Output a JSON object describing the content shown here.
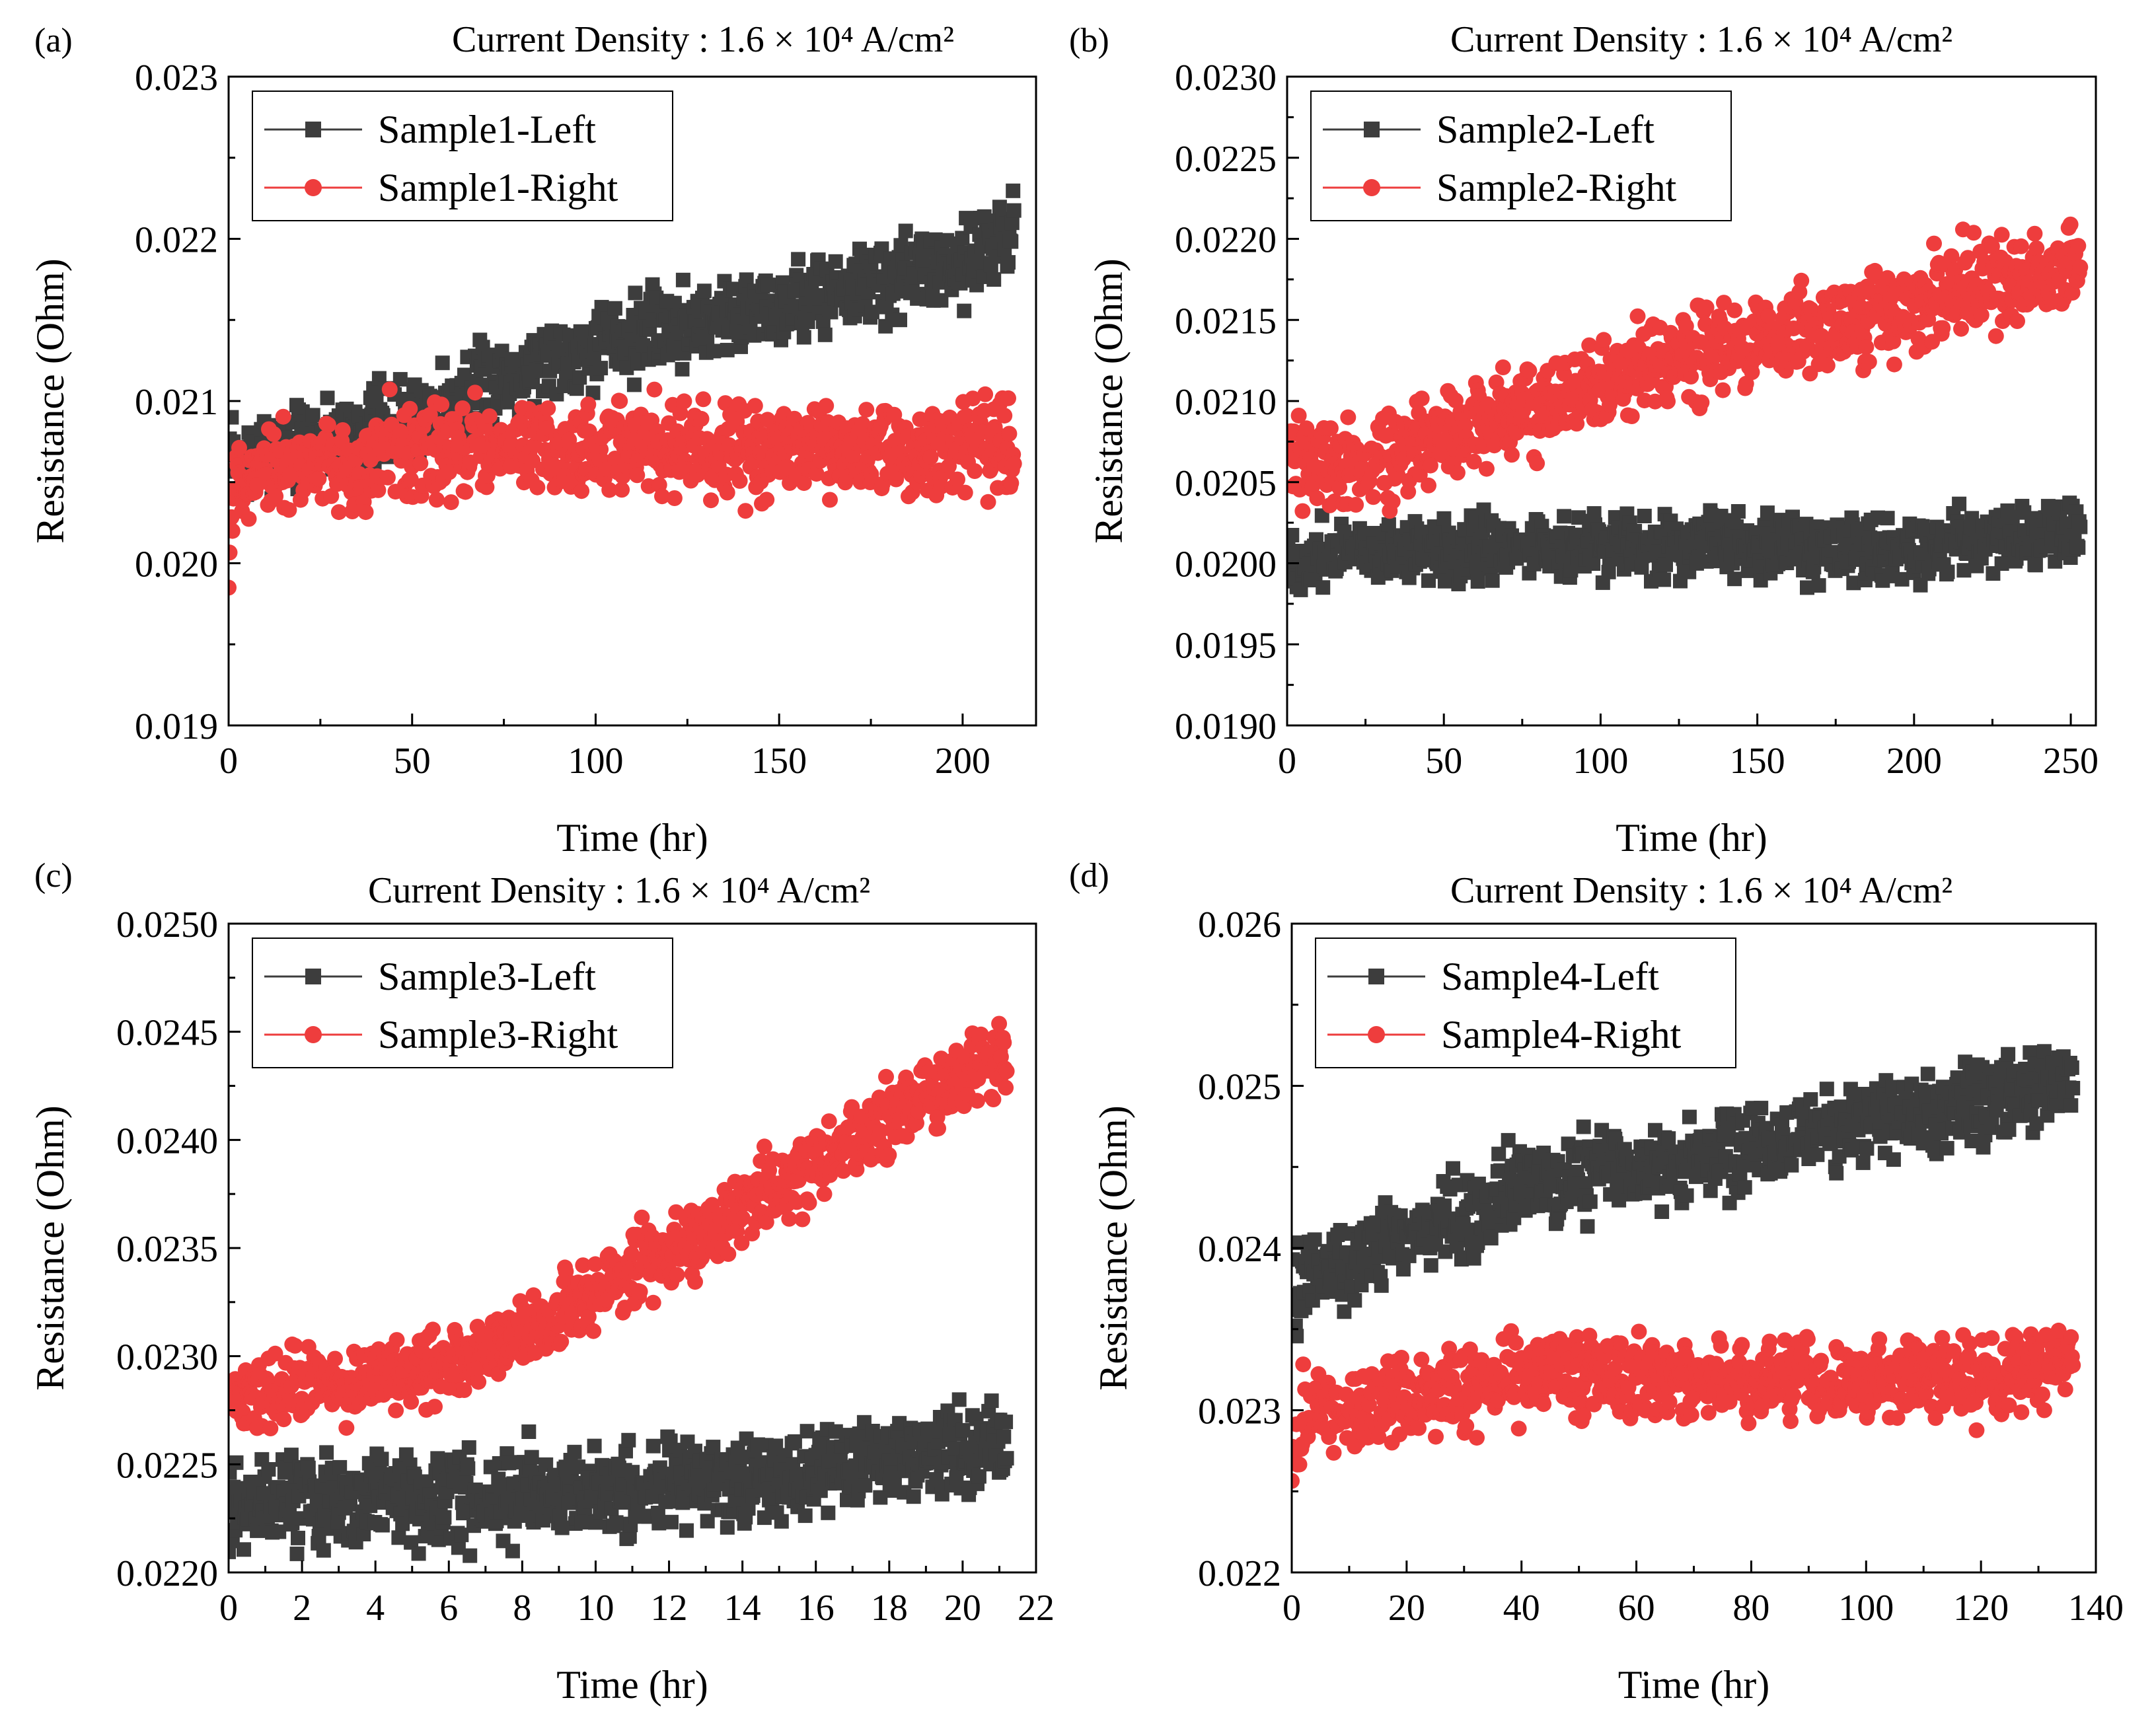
{
  "figure": {
    "colors": {
      "left": "#3d3d3d",
      "right": "#ee3d3d",
      "axis": "#000000"
    }
  },
  "chart_data": [
    {
      "type": "scatter",
      "panel": "(a)",
      "title": "Current Density : 1.6 × 10⁴ A/cm²",
      "xlabel": "Time (hr)",
      "ylabel": "Resistance (Ohm)",
      "xlim": [
        0,
        220
      ],
      "ylim": [
        0.019,
        0.023
      ],
      "xticks": [
        0,
        50,
        100,
        150,
        200
      ],
      "yticks": [
        0.019,
        0.02,
        0.021,
        0.022,
        0.023
      ],
      "ytick_labels": [
        "0.019",
        "0.020",
        "0.021",
        "0.022",
        "0.023"
      ],
      "legend_position": "top-left",
      "x_end": 214,
      "series": [
        {
          "name": "Sample1-Left",
          "marker": "square",
          "color_key": "left",
          "noise": 0.00022,
          "x": [
            0,
            2,
            10,
            30,
            50,
            70,
            90,
            110,
            130,
            150,
            170,
            190,
            214
          ],
          "y": [
            0.0207,
            0.0206,
            0.0207,
            0.0208,
            0.0209,
            0.0211,
            0.0213,
            0.0214,
            0.0215,
            0.0216,
            0.0217,
            0.0218,
            0.022
          ]
        },
        {
          "name": "Sample1-Right",
          "marker": "circle",
          "color_key": "right",
          "noise": 0.00025,
          "x": [
            0,
            2,
            10,
            30,
            50,
            70,
            90,
            110,
            130,
            150,
            170,
            190,
            214
          ],
          "y": [
            0.02,
            0.0205,
            0.0206,
            0.0206,
            0.0207,
            0.0207,
            0.0207,
            0.0207,
            0.0207,
            0.0207,
            0.0207,
            0.0207,
            0.0207
          ]
        }
      ]
    },
    {
      "type": "scatter",
      "panel": "(b)",
      "title": "Current Density : 1.6 × 10⁴ A/cm²",
      "xlabel": "Time (hr)",
      "ylabel": "Resistance (Ohm)",
      "xlim": [
        0,
        258
      ],
      "ylim": [
        0.019,
        0.023
      ],
      "xticks": [
        0,
        50,
        100,
        150,
        200,
        250
      ],
      "yticks": [
        0.019,
        0.0195,
        0.02,
        0.0205,
        0.021,
        0.0215,
        0.022,
        0.0225,
        0.023
      ],
      "ytick_labels": [
        "0.0190",
        "0.0195",
        "0.0200",
        "0.0205",
        "0.0210",
        "0.0215",
        "0.0220",
        "0.0225",
        "0.0230"
      ],
      "legend_position": "top-left",
      "x_end": 253,
      "series": [
        {
          "name": "Sample2-Left",
          "marker": "square",
          "color_key": "left",
          "noise": 0.00017,
          "x": [
            0,
            5,
            20,
            40,
            70,
            100,
            150,
            200,
            253
          ],
          "y": [
            0.02,
            0.02,
            0.0201,
            0.0201,
            0.0201,
            0.0201,
            0.0201,
            0.0201,
            0.0202
          ]
        },
        {
          "name": "Sample2-Right",
          "marker": "circle",
          "color_key": "right",
          "noise": 0.00025,
          "x": [
            0,
            5,
            20,
            40,
            70,
            100,
            130,
            160,
            190,
            220,
            253
          ],
          "y": [
            0.0206,
            0.0206,
            0.0206,
            0.0207,
            0.0209,
            0.0211,
            0.0213,
            0.0214,
            0.0215,
            0.0217,
            0.0218
          ]
        }
      ]
    },
    {
      "type": "scatter",
      "panel": "(c)",
      "title": "Current Density : 1.6 × 10⁴ A/cm²",
      "xlabel": "Time (hr)",
      "ylabel": "Resistance (Ohm)",
      "xlim": [
        0,
        22
      ],
      "ylim": [
        0.022,
        0.025
      ],
      "xticks": [
        0,
        2,
        4,
        6,
        8,
        10,
        12,
        14,
        16,
        18,
        20,
        22
      ],
      "yticks": [
        0.022,
        0.0225,
        0.023,
        0.0235,
        0.024,
        0.0245,
        0.025
      ],
      "ytick_labels": [
        "0.0220",
        "0.0225",
        "0.0230",
        "0.0235",
        "0.0240",
        "0.0245",
        "0.0250"
      ],
      "legend_position": "top-left",
      "x_end": 21.2,
      "series": [
        {
          "name": "Sample3-Left",
          "marker": "square",
          "color_key": "left",
          "noise": 0.00018,
          "x": [
            0,
            2,
            4,
            6,
            8,
            10,
            12,
            14,
            16,
            18,
            21.2
          ],
          "y": [
            0.02232,
            0.02233,
            0.02235,
            0.02235,
            0.02236,
            0.02237,
            0.0224,
            0.02243,
            0.02248,
            0.02253,
            0.02262
          ]
        },
        {
          "name": "Sample3-Right",
          "marker": "circle",
          "color_key": "right",
          "noise": 0.00015,
          "x": [
            0,
            2,
            4,
            6,
            8,
            10,
            12,
            14,
            16,
            18,
            20,
            21.2
          ],
          "y": [
            0.0228,
            0.02285,
            0.0229,
            0.02295,
            0.0231,
            0.0233,
            0.02348,
            0.02368,
            0.0239,
            0.0241,
            0.0243,
            0.0244
          ]
        }
      ]
    },
    {
      "type": "scatter",
      "panel": "(d)",
      "title": "Current Density : 1.6 × 10⁴ A/cm²",
      "xlabel": "Time (hr)",
      "ylabel": "Resistance (Ohm)",
      "xlim": [
        0,
        140
      ],
      "ylim": [
        0.022,
        0.026
      ],
      "xticks": [
        0,
        20,
        40,
        60,
        80,
        100,
        120,
        140
      ],
      "yticks": [
        0.022,
        0.023,
        0.024,
        0.025,
        0.026
      ],
      "ytick_labels": [
        "0.022",
        "0.023",
        "0.024",
        "0.025",
        "0.026"
      ],
      "legend_position": "top-left",
      "x_end": 136,
      "series": [
        {
          "name": "Sample4-Left",
          "marker": "square",
          "color_key": "left",
          "noise": 0.00022,
          "x": [
            0,
            2,
            10,
            20,
            30,
            40,
            60,
            80,
            100,
            120,
            136
          ],
          "y": [
            0.0237,
            0.0238,
            0.0239,
            0.0241,
            0.0242,
            0.0244,
            0.0245,
            0.0246,
            0.0248,
            0.0249,
            0.025
          ]
        },
        {
          "name": "Sample4-Right",
          "marker": "circle",
          "color_key": "right",
          "noise": 0.00022,
          "x": [
            0,
            2,
            10,
            20,
            30,
            40,
            60,
            80,
            100,
            120,
            136
          ],
          "y": [
            0.0226,
            0.023,
            0.023,
            0.0231,
            0.0231,
            0.0232,
            0.0232,
            0.0232,
            0.0232,
            0.0232,
            0.0233
          ]
        }
      ]
    }
  ]
}
